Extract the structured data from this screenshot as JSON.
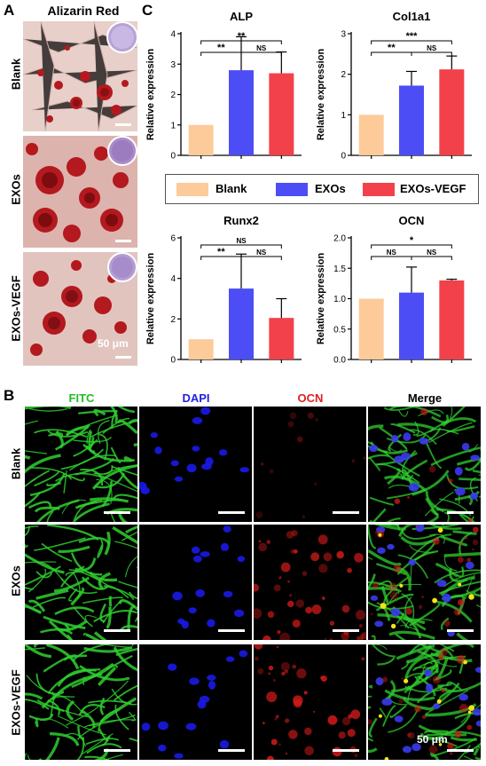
{
  "panelA": {
    "letter": "A",
    "title": "Alizarin Red",
    "rows": [
      "Blank",
      "EXOs",
      "EXOs-VEGF"
    ],
    "scale": "50 μm"
  },
  "panelB": {
    "letter": "B",
    "columns": [
      "FITC",
      "DAPI",
      "OCN",
      "Merge"
    ],
    "column_colors": [
      "#22bb22",
      "#2222dd",
      "#dd2222",
      "#000000"
    ],
    "rows": [
      "Blank",
      "EXOs",
      "EXOs-VEGF"
    ],
    "scale": "50 μm"
  },
  "panelC": {
    "letter": "C",
    "legend": [
      {
        "name": "Blank",
        "color": "#FCCB99"
      },
      {
        "name": "EXOs",
        "color": "#4D4DF5"
      },
      {
        "name": "EXOs-VEGF",
        "color": "#F2414A"
      }
    ]
  },
  "chart_data": [
    {
      "type": "bar",
      "title": "ALP",
      "ylabel": "Relative expression",
      "categories": [
        "Blank",
        "EXOs",
        "EXOs-VEGF"
      ],
      "values": [
        1.0,
        2.8,
        2.7
      ],
      "errors": [
        0,
        1.1,
        0.7
      ],
      "ylim": [
        0,
        4
      ],
      "yticks": [
        "0",
        "1",
        "2",
        "3",
        "4"
      ],
      "significance": [
        {
          "from": 0,
          "to": 1,
          "label": "**"
        },
        {
          "from": 1,
          "to": 2,
          "label": "NS"
        },
        {
          "from": 0,
          "to": 2,
          "label": "**"
        }
      ]
    },
    {
      "type": "bar",
      "title": "Col1a1",
      "ylabel": "Relative expression",
      "categories": [
        "Blank",
        "EXOs",
        "EXOs-VEGF"
      ],
      "values": [
        1.0,
        1.72,
        2.12
      ],
      "errors": [
        0,
        0.35,
        0.33
      ],
      "ylim": [
        0,
        3
      ],
      "yticks": [
        "0",
        "1",
        "2",
        "3"
      ],
      "significance": [
        {
          "from": 0,
          "to": 1,
          "label": "**"
        },
        {
          "from": 1,
          "to": 2,
          "label": "NS"
        },
        {
          "from": 0,
          "to": 2,
          "label": "***"
        }
      ]
    },
    {
      "type": "bar",
      "title": "Runx2",
      "ylabel": "Relative expression",
      "categories": [
        "Blank",
        "EXOs",
        "EXOs-VEGF"
      ],
      "values": [
        1.0,
        3.5,
        2.05
      ],
      "errors": [
        0,
        1.7,
        0.95
      ],
      "ylim": [
        0,
        6
      ],
      "yticks": [
        "0",
        "2",
        "4",
        "6"
      ],
      "significance": [
        {
          "from": 0,
          "to": 1,
          "label": "**"
        },
        {
          "from": 1,
          "to": 2,
          "label": "NS"
        },
        {
          "from": 0,
          "to": 2,
          "label": "NS"
        }
      ]
    },
    {
      "type": "bar",
      "title": "OCN",
      "ylabel": "Relative expression",
      "categories": [
        "Blank",
        "EXOs",
        "EXOs-VEGF"
      ],
      "values": [
        1.0,
        1.1,
        1.3
      ],
      "errors": [
        0,
        0.42,
        0.02
      ],
      "ylim": [
        0,
        2.0
      ],
      "yticks": [
        "0.0",
        "0.5",
        "1.0",
        "1.5",
        "2.0"
      ],
      "significance": [
        {
          "from": 0,
          "to": 1,
          "label": "NS"
        },
        {
          "from": 1,
          "to": 2,
          "label": "NS"
        },
        {
          "from": 0,
          "to": 2,
          "label": "*"
        }
      ]
    }
  ]
}
